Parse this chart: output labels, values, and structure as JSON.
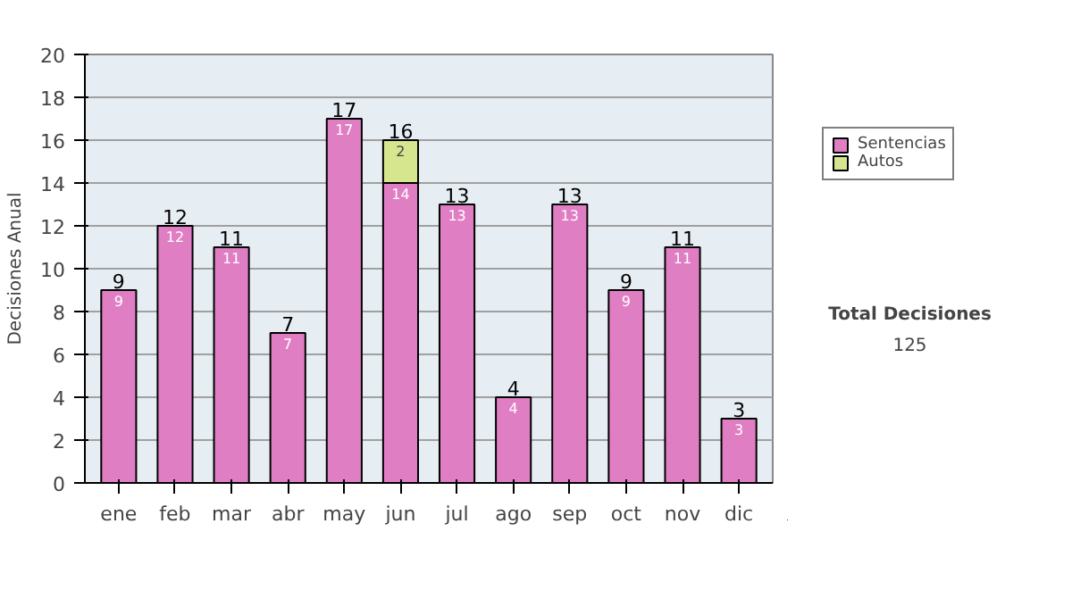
{
  "chart_data": {
    "type": "bar",
    "stacked": true,
    "ylabel": "Decisiones Anual",
    "categories": [
      "ene",
      "feb",
      "mar",
      "abr",
      "may",
      "jun",
      "jul",
      "ago",
      "sep",
      "oct",
      "nov",
      "dic"
    ],
    "series": [
      {
        "name": "Sentencias",
        "color": "#e07ec4",
        "values": [
          9,
          12,
          11,
          7,
          17,
          14,
          13,
          4,
          13,
          9,
          11,
          3
        ],
        "value_labels": [
          "9",
          "12",
          "11",
          "7",
          "17",
          "14",
          "13",
          "4",
          "13",
          "9",
          "11",
          "3"
        ]
      },
      {
        "name": "Autos",
        "color": "#d6e68e",
        "values": [
          null,
          null,
          null,
          null,
          null,
          2,
          null,
          null,
          null,
          null,
          null,
          null
        ],
        "value_labels": [
          null,
          null,
          null,
          null,
          null,
          "2",
          null,
          null,
          null,
          null,
          null,
          null
        ]
      }
    ],
    "totals": [
      "9",
      "12",
      "11",
      "7",
      "17",
      "16",
      "13",
      "4",
      "13",
      "9",
      "11",
      "3"
    ],
    "ylim": [
      0,
      20
    ],
    "yticks": [
      0,
      2,
      4,
      6,
      8,
      10,
      12,
      14,
      16,
      18,
      20
    ],
    "grid": "y",
    "legend": "right",
    "annotations": [
      "Total Decisiones",
      "125"
    ]
  }
}
